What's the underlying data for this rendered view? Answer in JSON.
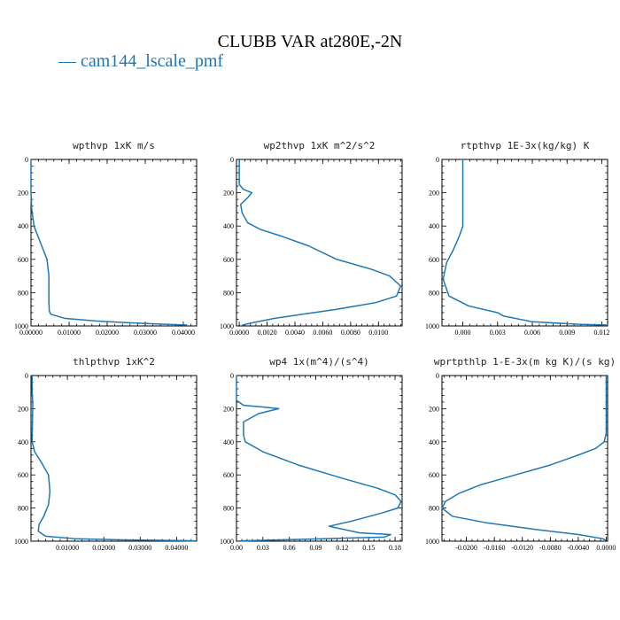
{
  "title": "CLUBB VAR at280E,-2N",
  "legend": [
    {
      "label": "— cam144_lscale_pmf",
      "color": "#1f77b4"
    }
  ],
  "chart_data": [
    {
      "type": "line",
      "title": "wpthvp   1xK m/s",
      "xlim": [
        0,
        0.0435
      ],
      "ylim": [
        1000,
        0
      ],
      "xticks": [
        0,
        0.01,
        0.02,
        0.03,
        0.04
      ],
      "xtick_labels": [
        "0.00000",
        "0.01000",
        "0.02000",
        "0.03000",
        "0.04000"
      ],
      "yticks": [
        0,
        200,
        400,
        600,
        800,
        1000
      ],
      "ytick_labels": [
        "0",
        "200",
        "400",
        "600",
        "800",
        "1000"
      ],
      "series": [
        {
          "color": "#1f77b4",
          "x": [
            0.0,
            0.0,
            0.0,
            0.0002,
            0.0008,
            0.0018,
            0.003,
            0.0042,
            0.0047,
            0.0047,
            0.0048,
            0.0052,
            0.009,
            0.017,
            0.025,
            0.033,
            0.041
          ],
          "y": [
            0,
            100,
            200,
            300,
            400,
            460,
            530,
            600,
            700,
            860,
            910,
            930,
            955,
            970,
            980,
            988,
            995
          ]
        }
      ]
    },
    {
      "type": "line",
      "title": "wp2thvp   1xK m^2/s^2",
      "xlim": [
        -0.0002,
        0.0117
      ],
      "ylim": [
        1000,
        0
      ],
      "xticks": [
        0,
        0.002,
        0.004,
        0.006,
        0.008,
        0.01
      ],
      "xtick_labels": [
        "0.0000",
        "0.0020",
        "0.0040",
        "0.0060",
        "0.0080",
        "0.0100"
      ],
      "yticks": [
        0,
        200,
        400,
        600,
        800,
        1000
      ],
      "ytick_labels": [
        "0",
        "200",
        "400",
        "600",
        "800",
        "1000"
      ],
      "series": [
        {
          "color": "#1f77b4",
          "x": [
            0.0,
            0.0,
            0.0003,
            0.0009,
            0.0006,
            0.0001,
            0.0002,
            0.0006,
            0.0015,
            0.003,
            0.005,
            0.007,
            0.0095,
            0.0108,
            0.0116,
            0.0113,
            0.0098,
            0.007,
            0.0045,
            0.0025,
            0.001,
            0.0002
          ],
          "y": [
            0,
            150,
            180,
            200,
            230,
            270,
            320,
            380,
            420,
            460,
            520,
            600,
            660,
            700,
            760,
            820,
            860,
            900,
            930,
            955,
            980,
            995
          ]
        }
      ]
    },
    {
      "type": "line",
      "title": "rtpthvp   1E-3x(kg/kg) K",
      "xlim": [
        -0.0018,
        0.0125
      ],
      "ylim": [
        1000,
        0
      ],
      "xticks": [
        0,
        0.003,
        0.006,
        0.009,
        0.012
      ],
      "xtick_labels": [
        "0.000",
        "0.003",
        "0.006",
        "0.009",
        "0.012"
      ],
      "yticks": [
        0,
        200,
        400,
        600,
        800,
        1000
      ],
      "ytick_labels": [
        "0",
        "200",
        "400",
        "600",
        "800",
        "1000"
      ],
      "series": [
        {
          "color": "#1f77b4",
          "x": [
            0.0,
            0.0,
            0.0,
            -0.0003,
            -0.0008,
            -0.0014,
            -0.0017,
            -0.0012,
            0.0005,
            0.003,
            0.0035,
            0.006,
            0.01,
            0.0125
          ],
          "y": [
            0,
            150,
            400,
            460,
            540,
            620,
            720,
            820,
            880,
            920,
            940,
            975,
            990,
            995
          ]
        }
      ]
    },
    {
      "type": "line",
      "title": "thlpthvp   1xK^2",
      "xlim": [
        0,
        0.0455
      ],
      "ylim": [
        1000,
        0
      ],
      "xticks": [
        0.01,
        0.02,
        0.03,
        0.04
      ],
      "xtick_labels": [
        "0.01000",
        "0.02000",
        "0.03000",
        "0.04000"
      ],
      "yticks": [
        0,
        200,
        400,
        600,
        800,
        1000
      ],
      "ytick_labels": [
        "0",
        "200",
        "400",
        "600",
        "800",
        "1000"
      ],
      "series": [
        {
          "color": "#1f77b4",
          "x": [
            0.0003,
            0.0003,
            0.0005,
            0.0003,
            0.001,
            0.003,
            0.0048,
            0.0052,
            0.0048,
            0.0035,
            0.0022,
            0.002,
            0.004,
            0.012,
            0.025,
            0.04,
            0.045
          ],
          "y": [
            0,
            100,
            160,
            400,
            460,
            530,
            600,
            700,
            780,
            850,
            900,
            940,
            970,
            985,
            992,
            996,
            998
          ]
        }
      ]
    },
    {
      "type": "line",
      "title": "wp4   1x(m^4)/(s^4)",
      "xlim": [
        0,
        0.188
      ],
      "ylim": [
        1000,
        0
      ],
      "xticks": [
        0,
        0.03,
        0.06,
        0.09,
        0.12,
        0.15,
        0.18
      ],
      "xtick_labels": [
        "0.00",
        "0.03",
        "0.06",
        "0.09",
        "0.12",
        "0.15",
        "0.18"
      ],
      "yticks": [
        0,
        200,
        400,
        600,
        800,
        1000
      ],
      "ytick_labels": [
        "0",
        "200",
        "400",
        "600",
        "800",
        "1000"
      ],
      "series": [
        {
          "color": "#1f77b4",
          "x": [
            0.0,
            0.0,
            0.008,
            0.03,
            0.048,
            0.025,
            0.008,
            0.008,
            0.01,
            0.03,
            0.07,
            0.12,
            0.16,
            0.18,
            0.187,
            0.183,
            0.165,
            0.13,
            0.105,
            0.14,
            0.175,
            0.168,
            0.1,
            0.04,
            0.005
          ],
          "y": [
            0,
            150,
            180,
            190,
            200,
            230,
            280,
            360,
            400,
            460,
            540,
            620,
            680,
            720,
            760,
            800,
            830,
            880,
            910,
            950,
            960,
            975,
            985,
            993,
            998
          ]
        }
      ]
    },
    {
      "type": "line",
      "title": "wprtpthlp   1-E-3x(m kg K)/(s kg)",
      "xlim": [
        -0.0235,
        0.0002
      ],
      "ylim": [
        1000,
        0
      ],
      "xticks": [
        -0.02,
        -0.016,
        -0.012,
        -0.008,
        -0.004,
        0.0
      ],
      "xtick_labels": [
        "-0.0200",
        "-0.0160",
        "-0.0120",
        "-0.0080",
        "-0.0040",
        "0.0000"
      ],
      "yticks": [
        0,
        200,
        400,
        600,
        800,
        1000
      ],
      "ytick_labels": [
        "0",
        "200",
        "400",
        "600",
        "800",
        "1000"
      ],
      "series": [
        {
          "color": "#1f77b4",
          "x": [
            0.0,
            0.0,
            -0.0003,
            -0.0015,
            -0.004,
            -0.008,
            -0.013,
            -0.018,
            -0.021,
            -0.023,
            -0.0235,
            -0.022,
            -0.017,
            -0.01,
            -0.004,
            -0.0005,
            0.0
          ],
          "y": [
            0,
            350,
            400,
            440,
            480,
            540,
            600,
            660,
            710,
            760,
            800,
            850,
            890,
            930,
            960,
            985,
            995
          ]
        }
      ]
    }
  ]
}
